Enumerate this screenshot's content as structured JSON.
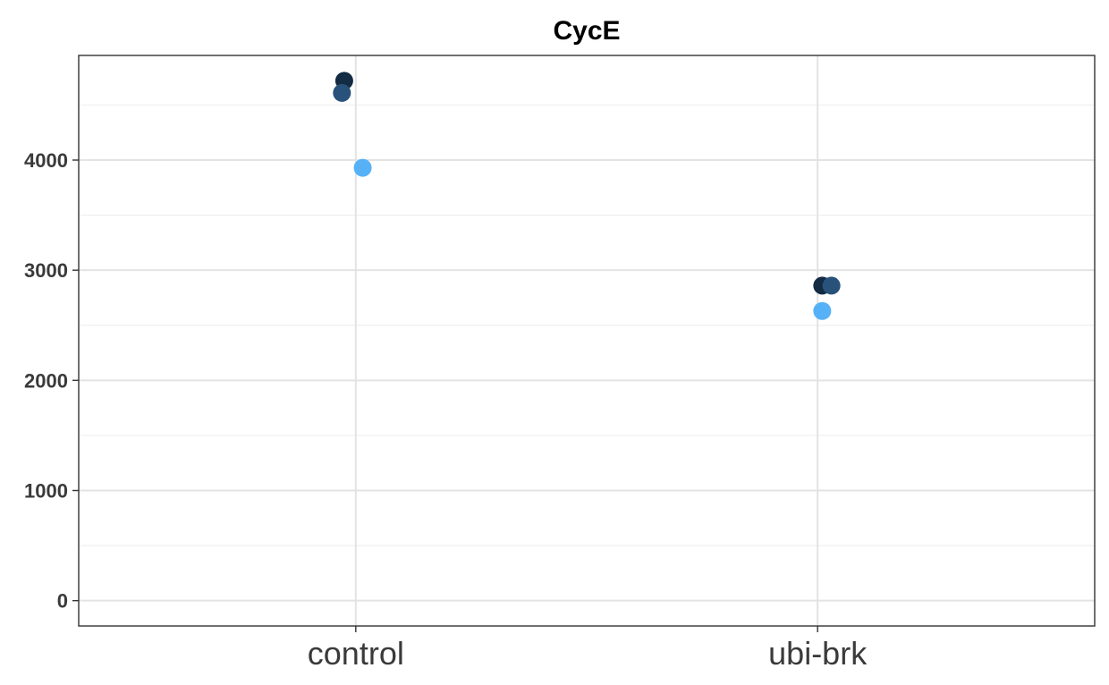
{
  "chart_data": {
    "type": "scatter",
    "title": "CycE",
    "xlabel": "",
    "ylabel": "",
    "categories": [
      "control",
      "ubi-brk"
    ],
    "ylim": [
      -230,
      4950
    ],
    "y_ticks": [
      0,
      1000,
      2000,
      3000,
      4000
    ],
    "grid": true,
    "legend": "none",
    "points": [
      {
        "category": "control",
        "jitter": -0.025,
        "y": 4720,
        "color": "#132B43"
      },
      {
        "category": "control",
        "jitter": -0.03,
        "y": 4610,
        "color": "#29527A"
      },
      {
        "category": "control",
        "jitter": 0.015,
        "y": 3930,
        "color": "#56B1F7"
      },
      {
        "category": "ubi-brk",
        "jitter": 0.01,
        "y": 2860,
        "color": "#132B43"
      },
      {
        "category": "ubi-brk",
        "jitter": 0.03,
        "y": 2860,
        "color": "#29527A"
      },
      {
        "category": "ubi-brk",
        "jitter": 0.01,
        "y": 2630,
        "color": "#56B1F7"
      }
    ]
  }
}
